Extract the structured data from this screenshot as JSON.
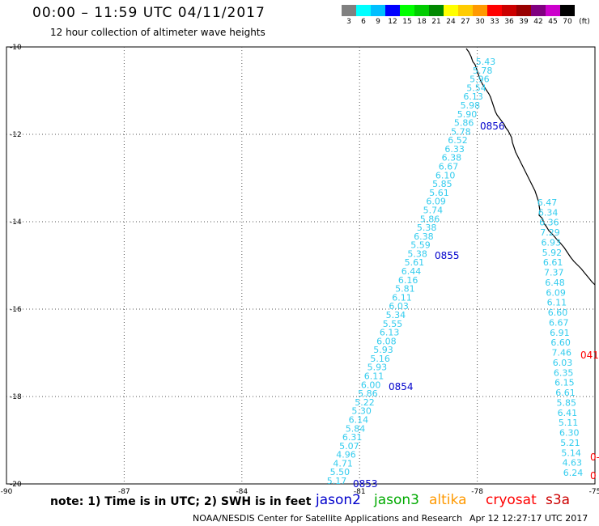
{
  "header": {
    "title": "00:00 – 11:59 UTC 04/11/2017",
    "subtitle": "12 hour collection of altimeter wave heights"
  },
  "colorbar": {
    "unit": "(ft)",
    "bins": [
      {
        "label": "3",
        "color": "#808080"
      },
      {
        "label": "6",
        "color": "#00ffff"
      },
      {
        "label": "9",
        "color": "#00bfff"
      },
      {
        "label": "12",
        "color": "#0000ff"
      },
      {
        "label": "15",
        "color": "#00ff00"
      },
      {
        "label": "18",
        "color": "#00cc00"
      },
      {
        "label": "21",
        "color": "#008800"
      },
      {
        "label": "24",
        "color": "#ffff00"
      },
      {
        "label": "27",
        "color": "#ffcc00"
      },
      {
        "label": "30",
        "color": "#ff9900"
      },
      {
        "label": "33",
        "color": "#ff0000"
      },
      {
        "label": "36",
        "color": "#cc0000"
      },
      {
        "label": "39",
        "color": "#990000"
      },
      {
        "label": "42",
        "color": "#800080"
      },
      {
        "label": "45",
        "color": "#cc00cc"
      },
      {
        "label": "70",
        "color": "#000000"
      }
    ]
  },
  "map": {
    "lon_range": [
      -90,
      -75
    ],
    "lat_range": [
      -20,
      -10
    ],
    "lon_ticks": [
      "-90",
      "-87",
      "-84",
      "-81",
      "-78",
      "-75"
    ],
    "lat_ticks": [
      "-10",
      "-12",
      "-14",
      "-16",
      "-18",
      "-20"
    ],
    "tracks": [
      {
        "color": "#33ccee",
        "values": [
          "5.43",
          "5.78",
          "5.96",
          "5.54",
          "6.13",
          "5.98",
          "5.90",
          "5.86",
          "5.78",
          "6.52",
          "6.33",
          "6.38",
          "6.67",
          "6.10",
          "5.85",
          "5.61",
          "6.09",
          "5.74",
          "5.86",
          "5.38",
          "6.38",
          "5.59",
          "5.38",
          "5.61",
          "6.44",
          "6.16",
          "5.81",
          "6.11",
          "6.03",
          "5.34",
          "5.55",
          "6.13",
          "6.08",
          "5.93",
          "5.16",
          "5.93",
          "6.11",
          "6.00",
          "5.86",
          "5.22",
          "5.30",
          "6.14",
          "5.84",
          "6.31",
          "5.07",
          "4.96",
          "4.71",
          "5.50",
          "5.17"
        ],
        "time_labels": [
          {
            "text": "0856",
            "color": "#0000cc"
          },
          {
            "text": "0855",
            "color": "#0000cc"
          },
          {
            "text": "0854",
            "color": "#0000cc"
          },
          {
            "text": "0853",
            "color": "#0000cc"
          }
        ]
      },
      {
        "color": "#33ccee",
        "values": [
          "6.47",
          "6.34",
          "6.36",
          "7.29",
          "6.93",
          "5.92",
          "6.61",
          "7.37",
          "6.48",
          "6.09",
          "6.11",
          "6.60",
          "6.67",
          "6.91",
          "6.60",
          "7.46",
          "6.03",
          "6.35",
          "6.15",
          "6.61",
          "5.85",
          "6.41",
          "5.11",
          "6.30",
          "5.21",
          "5.14",
          "4.63",
          "6.24"
        ],
        "time_labels": [
          {
            "text": "041",
            "color": "#ff0000"
          },
          {
            "text": "0-",
            "color": "#ff0000"
          },
          {
            "text": "0",
            "color": "#ff0000"
          }
        ]
      }
    ]
  },
  "note": "note:  1) Time is in UTC;  2) SWH is in feet",
  "legend": [
    {
      "name": "jason2",
      "color": "#0000cc"
    },
    {
      "name": "jason3",
      "color": "#00aa00"
    },
    {
      "name": "altika",
      "color": "#ff9900"
    },
    {
      "name": "cryosat",
      "color": "#ff0000"
    },
    {
      "name": "s3a",
      "color": "#cc0000"
    }
  ],
  "footer": {
    "source": "NOAA/NESDIS Center for Satellite Applications and Research",
    "timestamp": "Apr 12 12:27:17 UTC 2017"
  }
}
